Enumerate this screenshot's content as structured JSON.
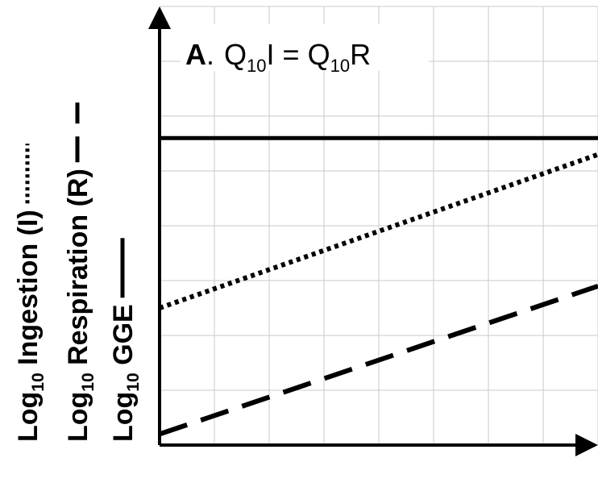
{
  "chart_data": {
    "type": "line",
    "title": {
      "prefix": "A",
      "prefix_dot": ".",
      "lhs_main": "Q",
      "lhs_sub": "10",
      "lhs_var": "I",
      "equals": " = ",
      "rhs_main": "Q",
      "rhs_sub": "10",
      "rhs_var": "R"
    },
    "ylabels": [
      {
        "prefix": "Log",
        "sub": "10",
        "text": " Ingestion (I)",
        "line_style": "dotted"
      },
      {
        "prefix": "Log",
        "sub": "10",
        "text": " Respiration (R)",
        "line_style": "dashed"
      },
      {
        "prefix": "Log",
        "sub": "10",
        "text": " GGE",
        "line_style": "solid"
      }
    ],
    "xlabel": "",
    "grid": true,
    "x_ticks_labeled": false,
    "y_ticks_labeled": false,
    "xlim": [
      0,
      8
    ],
    "ylim": [
      0,
      8
    ],
    "series": [
      {
        "style": "solid",
        "x": [
          0,
          8
        ],
        "y": [
          5.6,
          5.6
        ]
      },
      {
        "style": "dotted",
        "x": [
          0,
          8
        ],
        "y": [
          2.5,
          5.3
        ]
      },
      {
        "style": "dashed",
        "x": [
          0,
          8
        ],
        "y": [
          0.2,
          2.9
        ]
      }
    ],
    "colors": {
      "line": "#000000",
      "grid": "#c8c8c8",
      "background": "#ffffff"
    }
  }
}
